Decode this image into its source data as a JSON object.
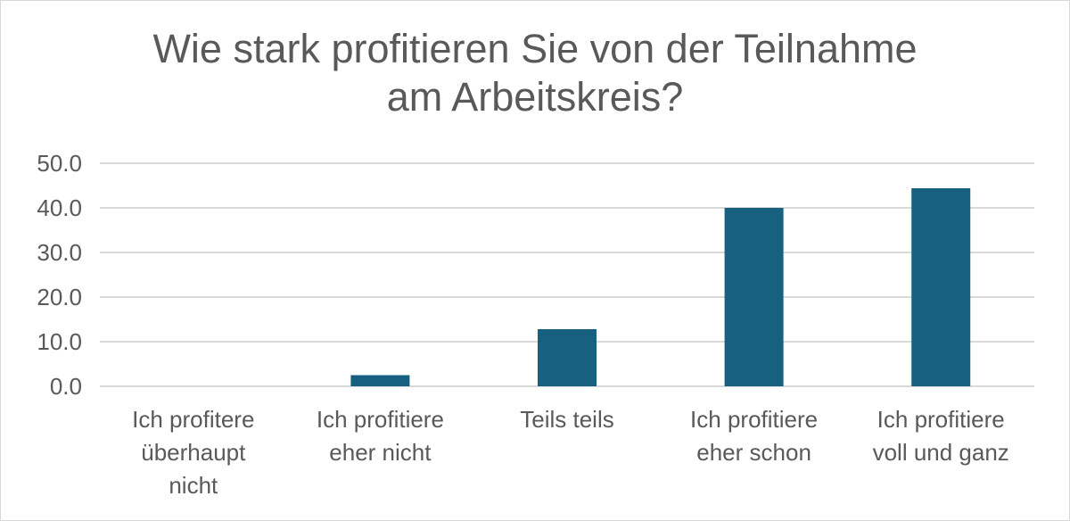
{
  "chart_data": {
    "type": "bar",
    "title_lines": [
      "Wie stark profitieren Sie von der Teilnahme",
      "am Arbeitskreis?"
    ],
    "categories": [
      [
        "Ich profitere",
        "überhaupt",
        "nicht"
      ],
      [
        "Ich profitiere",
        "eher nicht"
      ],
      [
        "Teils teils"
      ],
      [
        "Ich profitiere",
        "eher schon"
      ],
      [
        "Ich profitiere",
        "voll und ganz"
      ]
    ],
    "values": [
      0.0,
      2.5,
      12.8,
      40.0,
      44.4
    ],
    "ylim": [
      0,
      50
    ],
    "yticks": [
      "0.0",
      "10.0",
      "20.0",
      "30.0",
      "40.0",
      "50.0"
    ],
    "grid": true,
    "legend": "none",
    "bar_color": "#17607f",
    "grid_color": "#d9d9d9"
  }
}
